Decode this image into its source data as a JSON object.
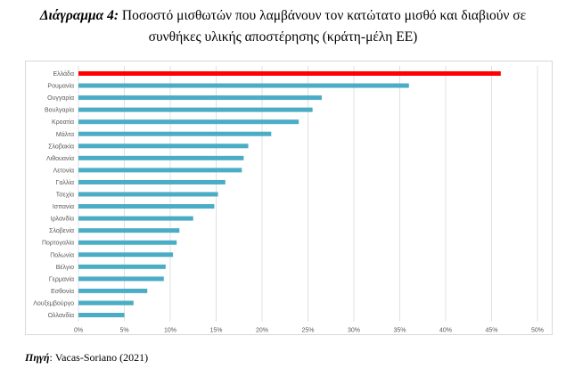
{
  "header": {
    "label": "Διάγραμμα 4:",
    "line1": "Ποσοστό μισθωτών που λαμβάνουν τον κατώτατο μισθό και διαβιούν σε",
    "line2": "συνθήκες υλικής αποστέρησης (κράτη-μέλη ΕΕ)"
  },
  "footer": {
    "label": "Πηγή",
    "text": ": Vacas-Soriano (2021)"
  },
  "colors": {
    "highlight": "#ff0000",
    "bar": "#4bacc6",
    "grid": "#d9d9d9",
    "text": "#595959"
  },
  "chart_data": {
    "type": "bar",
    "orientation": "horizontal",
    "categories": [
      "Ελλάδα",
      "Ρουμανία",
      "Ουγγαρία",
      "Βουλγαρία",
      "Κροατία",
      "Μάλτα",
      "Σλοβακία",
      "Λιθουανία",
      "Λετονία",
      "Γαλλία",
      "Τσεχία",
      "Ισπανία",
      "Ιρλανδία",
      "Σλοβενία",
      "Πορτογαλία",
      "Πολωνία",
      "Βέλγιο",
      "Γερμανία",
      "Εσθονία",
      "Λουξεμβούργο",
      "Ολλανδία"
    ],
    "values": [
      46,
      36,
      26.5,
      25.5,
      24,
      21,
      18.5,
      18,
      17.8,
      16,
      15.2,
      14.8,
      12.5,
      11,
      10.7,
      10.3,
      9.5,
      9.3,
      7.5,
      6,
      5
    ],
    "highlight_index": 0,
    "xlim": [
      0,
      50
    ],
    "xticks": [
      "0%",
      "5%",
      "10%",
      "15%",
      "20%",
      "25%",
      "30%",
      "35%",
      "40%",
      "45%",
      "50%"
    ],
    "grid": true,
    "title": "",
    "xlabel": "",
    "ylabel": ""
  }
}
